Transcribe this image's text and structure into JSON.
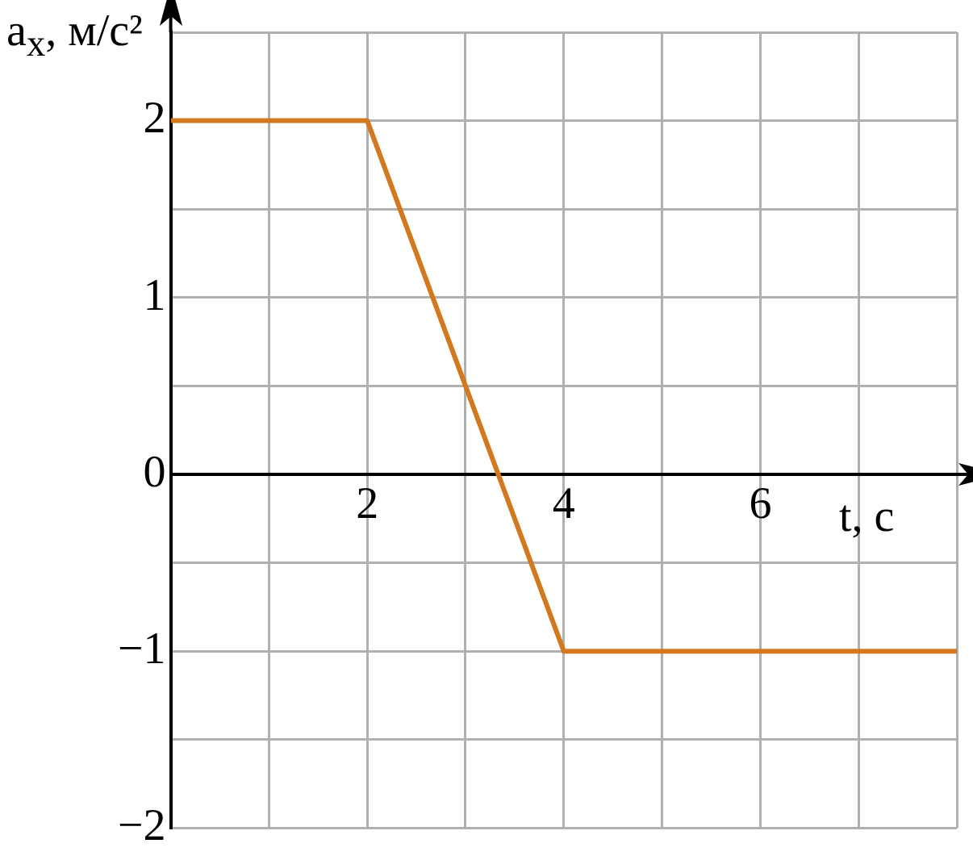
{
  "chart_data": {
    "type": "line",
    "xlabel": "t, с",
    "ylabel": "a$_{x}$, м/с²",
    "x": [
      0,
      2,
      4,
      8
    ],
    "series": [
      {
        "color": "#d2781e",
        "values": [
          2,
          2,
          -1,
          -1
        ]
      }
    ],
    "xlim": [
      0,
      8
    ],
    "ylim": [
      -2,
      2.5
    ],
    "xticks": [
      {
        "value": 1,
        "label": null
      },
      2,
      {
        "value": 3,
        "label": null
      },
      4,
      {
        "value": 5,
        "label": null
      },
      6,
      {
        "value": 7,
        "label": null
      },
      {
        "value": 8,
        "label": null
      }
    ],
    "yticks": [
      {
        "value": -2,
        "label": "−2"
      },
      {
        "value": -1.5,
        "label": null
      },
      {
        "value": -1,
        "label": "−1"
      },
      {
        "value": -0.5,
        "label": null
      },
      0,
      {
        "value": 0.5,
        "label": null
      },
      1,
      {
        "value": 1.5,
        "label": null
      },
      2,
      {
        "value": 2.5,
        "label": null
      }
    ],
    "grid": true,
    "marker": "none",
    "line_style": "solid",
    "legend": false
  }
}
